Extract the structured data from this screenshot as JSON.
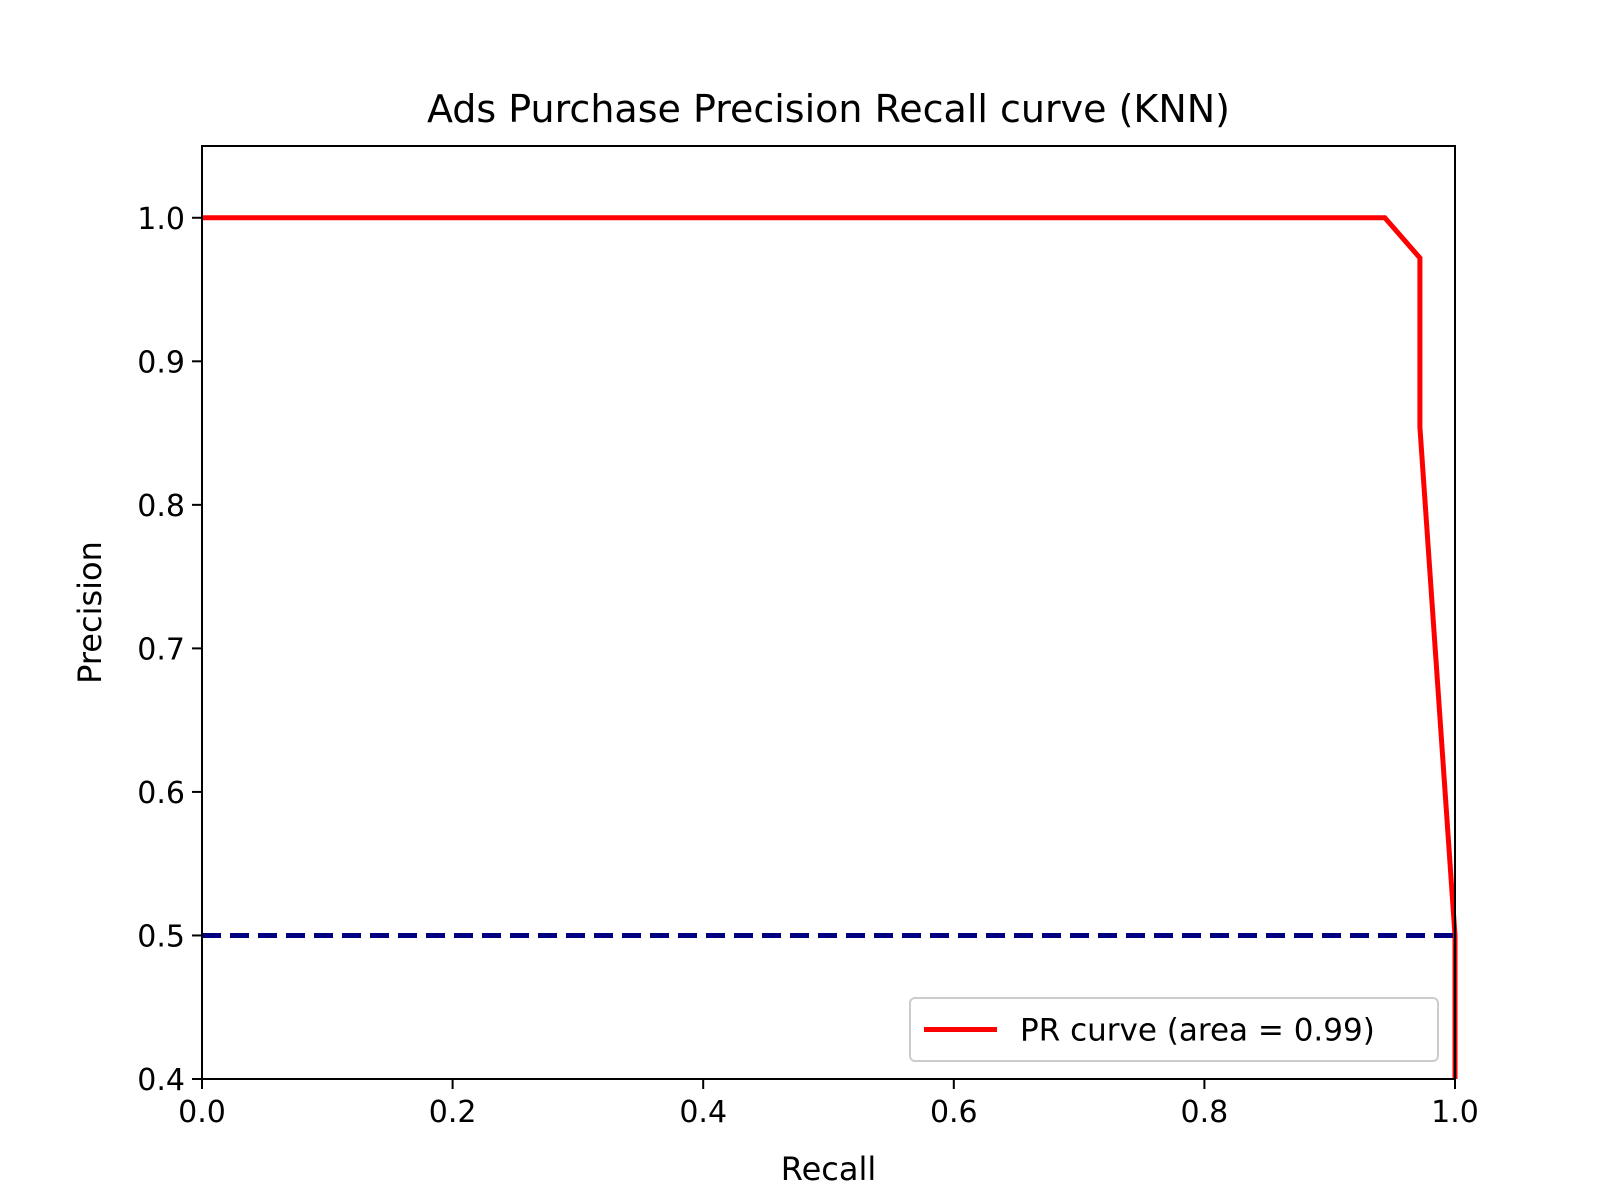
{
  "chart_data": {
    "type": "line",
    "title": "Ads Purchase Precision Recall curve (KNN)",
    "xlabel": "Recall",
    "ylabel": "Precision",
    "xlim": [
      0.0,
      1.0
    ],
    "ylim": [
      0.4,
      1.05
    ],
    "xticks": [
      0.0,
      0.2,
      0.4,
      0.6,
      0.8,
      1.0
    ],
    "xtick_labels": [
      "0.0",
      "0.2",
      "0.4",
      "0.6",
      "0.8",
      "1.0"
    ],
    "yticks": [
      0.4,
      0.5,
      0.6,
      0.7,
      0.8,
      0.9,
      1.0
    ],
    "ytick_labels": [
      "0.4",
      "0.5",
      "0.6",
      "0.7",
      "0.8",
      "0.9",
      "1.0"
    ],
    "grid": false,
    "legend_position": "lower-right",
    "series": [
      {
        "name": "PR curve (area = 0.99)",
        "color": "#ff0000",
        "style": "solid",
        "x": [
          0.0,
          0.944,
          0.972,
          0.972,
          1.0,
          1.0
        ],
        "y": [
          1.0,
          1.0,
          0.972,
          0.854,
          0.5,
          0.4
        ]
      },
      {
        "color": "#000080",
        "style": "dashed",
        "x": [
          0.0,
          1.0
        ],
        "y": [
          0.5,
          0.5
        ]
      }
    ]
  }
}
